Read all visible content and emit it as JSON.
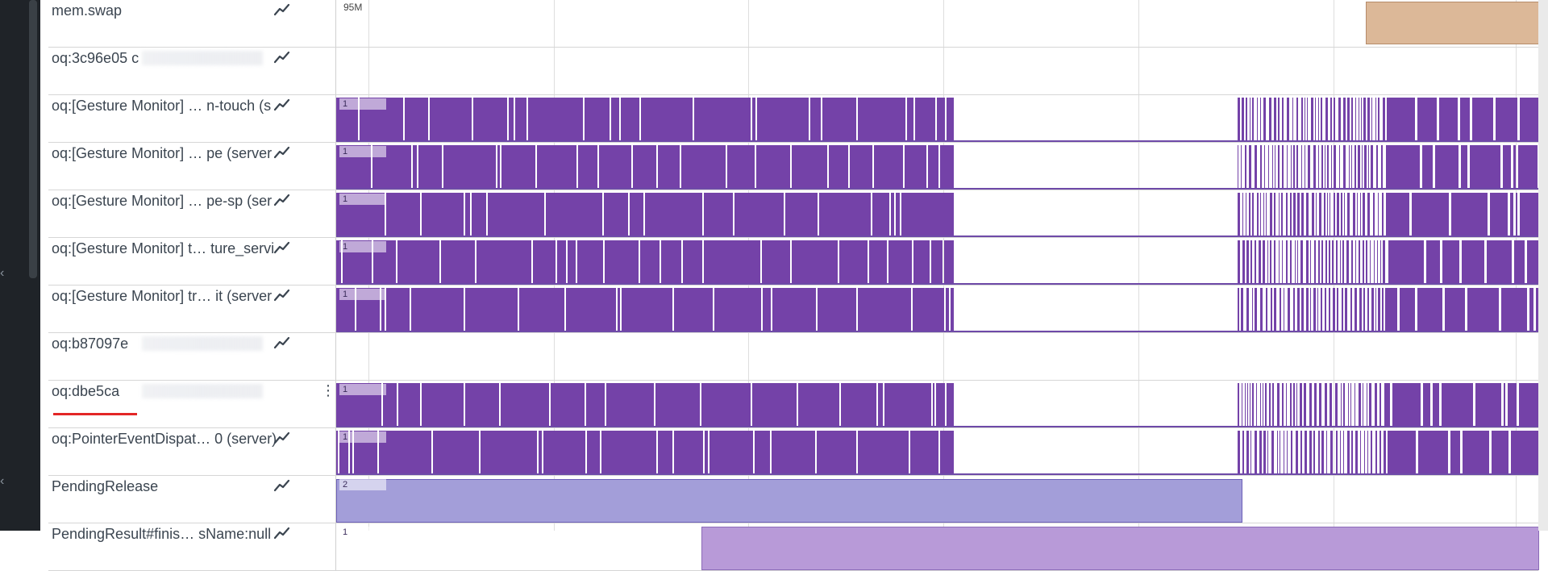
{
  "timeline": {
    "ruler_label": "95M"
  },
  "tracks": [
    {
      "name": "mem.swap",
      "count_label": "",
      "kind": "swap"
    },
    {
      "name": "oq:3c96e05 c",
      "count_label": "",
      "kind": "empty",
      "blurred": true
    },
    {
      "name": "oq:[Gesture Monitor] … n-touch (s",
      "count_label": "1",
      "kind": "gesture"
    },
    {
      "name": "oq:[Gesture Monitor] … pe (server",
      "count_label": "1",
      "kind": "gesture"
    },
    {
      "name": "oq:[Gesture Monitor] … pe-sp (ser",
      "count_label": "1",
      "kind": "gesture"
    },
    {
      "name": "oq:[Gesture Monitor] t… ture_servi",
      "count_label": "1",
      "kind": "gesture"
    },
    {
      "name": "oq:[Gesture Monitor] tr… it (server",
      "count_label": "1",
      "kind": "gesture"
    },
    {
      "name": "oq:b87097e",
      "count_label": "",
      "kind": "empty",
      "blurred": true
    },
    {
      "name": "oq:dbe5ca",
      "count_label": "1",
      "kind": "gesture",
      "blurred": true,
      "selected": true
    },
    {
      "name": "oq:PointerEventDispat… 0 (server)",
      "count_label": "1",
      "kind": "gesture"
    },
    {
      "name": "PendingRelease",
      "count_label": "2",
      "kind": "pending"
    },
    {
      "name": "PendingResult#finis… sName:null",
      "count_label": "1",
      "kind": "pending-result"
    }
  ],
  "colors": {
    "slice_purple": "#7442a8",
    "swap_tan": "#dcb898",
    "pending_lavender": "#a39ed9",
    "pending_result": "#b89ad8",
    "selection_underline": "#e32626"
  },
  "icons": {
    "graph": "line-chart-icon",
    "menu": "more-vert-icon"
  }
}
